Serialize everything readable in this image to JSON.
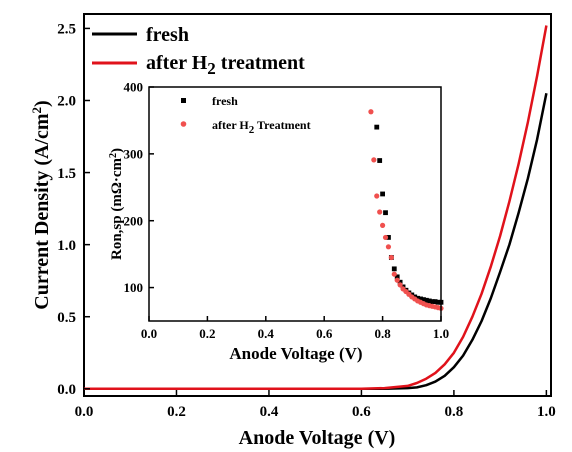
{
  "chart_data": [
    {
      "type": "line",
      "xlabel": "Anode Voltage (V)",
      "ylabel": "Current Density (A/cm",
      "ylabel_sup": "2",
      "ylabel_end": ")",
      "xlim": [
        0.0,
        1.01
      ],
      "ylim": [
        -0.05,
        2.6
      ],
      "x_ticks": [
        0.0,
        0.2,
        0.4,
        0.6,
        0.8,
        1.0
      ],
      "x_tick_labels": [
        "0.0",
        "0.2",
        "0.4",
        "0.6",
        "0.8",
        "1.0"
      ],
      "y_ticks": [
        0.0,
        0.5,
        1.0,
        1.5,
        2.0,
        2.5
      ],
      "y_tick_labels": [
        "0.0",
        "0.5",
        "1.0",
        "1.5",
        "2.0",
        "2.5"
      ],
      "legend_position": "top-left",
      "series": [
        {
          "name": "fresh",
          "color": "#000000",
          "x": [
            0.0,
            0.5,
            0.65,
            0.7,
            0.72,
            0.74,
            0.76,
            0.78,
            0.8,
            0.82,
            0.84,
            0.86,
            0.88,
            0.9,
            0.92,
            0.94,
            0.96,
            0.98,
            1.0
          ],
          "y": [
            0.0,
            0.0,
            0.0,
            0.005,
            0.01,
            0.025,
            0.05,
            0.09,
            0.15,
            0.23,
            0.34,
            0.47,
            0.63,
            0.81,
            1.0,
            1.22,
            1.46,
            1.73,
            2.05
          ]
        },
        {
          "name_prefix": "after H",
          "name_sub": "2",
          "name_suffix": " treatment",
          "color": "#e0121b",
          "x": [
            0.0,
            0.5,
            0.6,
            0.65,
            0.7,
            0.72,
            0.74,
            0.76,
            0.78,
            0.8,
            0.82,
            0.84,
            0.86,
            0.88,
            0.9,
            0.92,
            0.94,
            0.96,
            0.98,
            1.0
          ],
          "y": [
            0.0,
            0.0,
            0.0,
            0.005,
            0.02,
            0.04,
            0.07,
            0.11,
            0.17,
            0.25,
            0.36,
            0.5,
            0.66,
            0.85,
            1.06,
            1.3,
            1.56,
            1.85,
            2.17,
            2.52
          ]
        }
      ]
    },
    {
      "type": "scatter",
      "xlabel": "Anode Voltage (V)",
      "ylabel": "Ron,sp (mΩ·cm",
      "ylabel_sup": "2",
      "ylabel_end": ")",
      "xlim": [
        0.0,
        1.0
      ],
      "ylim": [
        50,
        400
      ],
      "x_ticks": [
        0.0,
        0.2,
        0.4,
        0.6,
        0.8,
        1.0
      ],
      "x_tick_labels": [
        "0.0",
        "0.2",
        "0.4",
        "0.6",
        "0.8",
        "1.0"
      ],
      "y_ticks": [
        100,
        200,
        300,
        400
      ],
      "y_tick_labels": [
        "100",
        "200",
        "300",
        "400"
      ],
      "legend_position": "top-left",
      "series": [
        {
          "name": "fresh",
          "color": "#000000",
          "marker": "square",
          "x": [
            0.78,
            0.79,
            0.8,
            0.81,
            0.82,
            0.83,
            0.84,
            0.85,
            0.86,
            0.87,
            0.88,
            0.89,
            0.9,
            0.91,
            0.92,
            0.93,
            0.94,
            0.95,
            0.96,
            0.97,
            0.98,
            0.99,
            1.0
          ],
          "y": [
            340,
            290,
            240,
            212,
            175,
            145,
            128,
            116,
            108,
            101,
            96,
            92,
            89,
            86,
            84,
            83,
            82,
            81,
            80,
            79,
            79,
            78,
            78
          ]
        },
        {
          "name_prefix": "after H",
          "name_sub": "2",
          "name_suffix": " Treatment",
          "color": "#f0504e",
          "marker": "circle",
          "x": [
            0.76,
            0.77,
            0.78,
            0.79,
            0.8,
            0.81,
            0.82,
            0.83,
            0.84,
            0.85,
            0.86,
            0.87,
            0.88,
            0.89,
            0.9,
            0.91,
            0.92,
            0.93,
            0.94,
            0.95,
            0.96,
            0.97,
            0.98,
            0.99,
            1.0
          ],
          "y": [
            363,
            291,
            237,
            213,
            193,
            175,
            161,
            145,
            120,
            111,
            104,
            98,
            94,
            90,
            86,
            83,
            80,
            78,
            76,
            74,
            73,
            72,
            71,
            70,
            69
          ]
        }
      ]
    }
  ]
}
